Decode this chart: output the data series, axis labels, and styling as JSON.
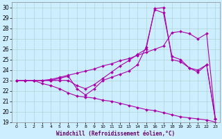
{
  "xlabel": "Windchill (Refroidissement éolien,°C)",
  "background_color": "#cceeff",
  "grid_color": "#aacccc",
  "line_color": "#aa00aa",
  "xlim": [
    -0.5,
    23.5
  ],
  "ylim": [
    19,
    30.5
  ],
  "yticks": [
    19,
    20,
    21,
    22,
    23,
    24,
    25,
    26,
    27,
    28,
    29,
    30
  ],
  "xticks": [
    0,
    1,
    2,
    3,
    4,
    5,
    6,
    7,
    8,
    9,
    10,
    11,
    12,
    13,
    14,
    15,
    16,
    17,
    18,
    19,
    20,
    21,
    22,
    23
  ],
  "lines": [
    {
      "x": [
        0,
        1,
        2,
        3,
        4,
        5,
        6,
        7,
        8,
        9,
        10,
        11,
        12,
        13,
        14,
        15,
        16,
        17,
        18,
        19,
        20,
        21,
        22,
        23
      ],
      "y": [
        23,
        23,
        23,
        22.7,
        22.5,
        22.2,
        21.8,
        21.5,
        21.4,
        21.3,
        21.1,
        21.0,
        20.8,
        20.6,
        20.4,
        20.2,
        20.1,
        19.9,
        19.7,
        19.5,
        19.4,
        19.3,
        19.2,
        19.0
      ]
    },
    {
      "x": [
        0,
        1,
        2,
        3,
        4,
        5,
        6,
        7,
        8,
        9,
        10,
        11,
        12,
        13,
        14,
        15,
        16,
        17,
        18,
        19,
        20,
        21,
        22,
        23
      ],
      "y": [
        23,
        23,
        23,
        23,
        23.0,
        23.2,
        23.4,
        22.2,
        21.6,
        22.2,
        23.0,
        23.3,
        23.6,
        23.9,
        24.5,
        26.2,
        29.8,
        29.5,
        25.3,
        25.0,
        24.2,
        24.0,
        24.5,
        19.3
      ]
    },
    {
      "x": [
        0,
        1,
        2,
        3,
        4,
        5,
        6,
        7,
        8,
        9,
        10,
        11,
        12,
        13,
        14,
        15,
        16,
        17,
        18,
        19,
        20,
        21,
        22,
        23
      ],
      "y": [
        23,
        23,
        23,
        23,
        23.1,
        23.3,
        23.5,
        23.7,
        23.9,
        24.1,
        24.4,
        24.6,
        24.9,
        25.1,
        25.4,
        25.7,
        26.0,
        26.3,
        27.6,
        27.7,
        27.5,
        27.0,
        27.5,
        19.3
      ]
    },
    {
      "x": [
        0,
        1,
        2,
        3,
        4,
        5,
        6,
        7,
        8,
        9,
        10,
        11,
        12,
        13,
        14,
        15,
        16,
        17,
        18,
        19,
        20,
        21,
        22,
        23
      ],
      "y": [
        23,
        23,
        23,
        23,
        23.0,
        23.0,
        23.0,
        22.5,
        22.2,
        22.6,
        23.2,
        23.8,
        24.4,
        24.9,
        25.5,
        26.0,
        29.9,
        30.0,
        25.0,
        24.8,
        24.2,
        23.8,
        24.5,
        19.3
      ]
    }
  ]
}
